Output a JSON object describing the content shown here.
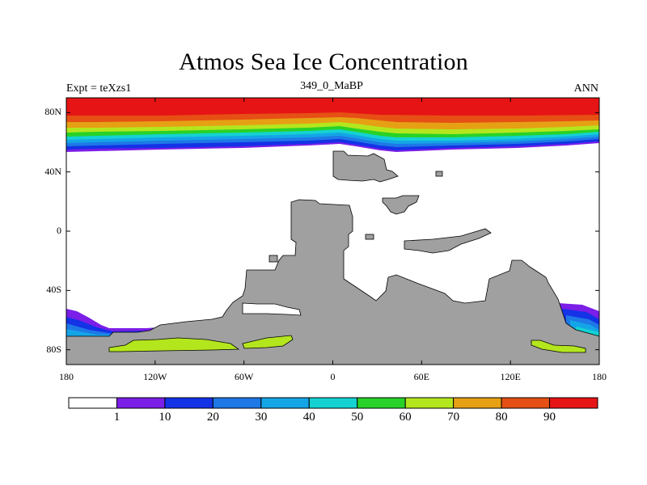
{
  "title": "Atmos Sea Ice Concentration",
  "left_label": "Expt = teXzs1",
  "center_label": "349_0_MaBP",
  "right_label": "ANN",
  "lat_ticks": [
    {
      "value": 80,
      "label": "80N"
    },
    {
      "value": 40,
      "label": "40N"
    },
    {
      "value": 0,
      "label": "0"
    },
    {
      "value": -40,
      "label": "40S"
    },
    {
      "value": -80,
      "label": "80S"
    }
  ],
  "lon_ticks": [
    {
      "value": -180,
      "label": "180"
    },
    {
      "value": -120,
      "label": "120W"
    },
    {
      "value": -60,
      "label": "60W"
    },
    {
      "value": 0,
      "label": "0"
    },
    {
      "value": 60,
      "label": "60E"
    },
    {
      "value": 120,
      "label": "120E"
    },
    {
      "value": 180,
      "label": "180"
    }
  ],
  "colorbar": {
    "colors": [
      "#ffffff",
      "#7a1ee8",
      "#1432e6",
      "#1e78e6",
      "#14a5e6",
      "#14d2d2",
      "#28d228",
      "#b4e61e",
      "#e6a014",
      "#e65014",
      "#e61414"
    ],
    "labels": [
      "1",
      "10",
      "20",
      "30",
      "40",
      "50",
      "60",
      "70",
      "80",
      "90"
    ]
  },
  "colors": {
    "land": "#a0a0a0",
    "land_edge": "#000000"
  }
}
